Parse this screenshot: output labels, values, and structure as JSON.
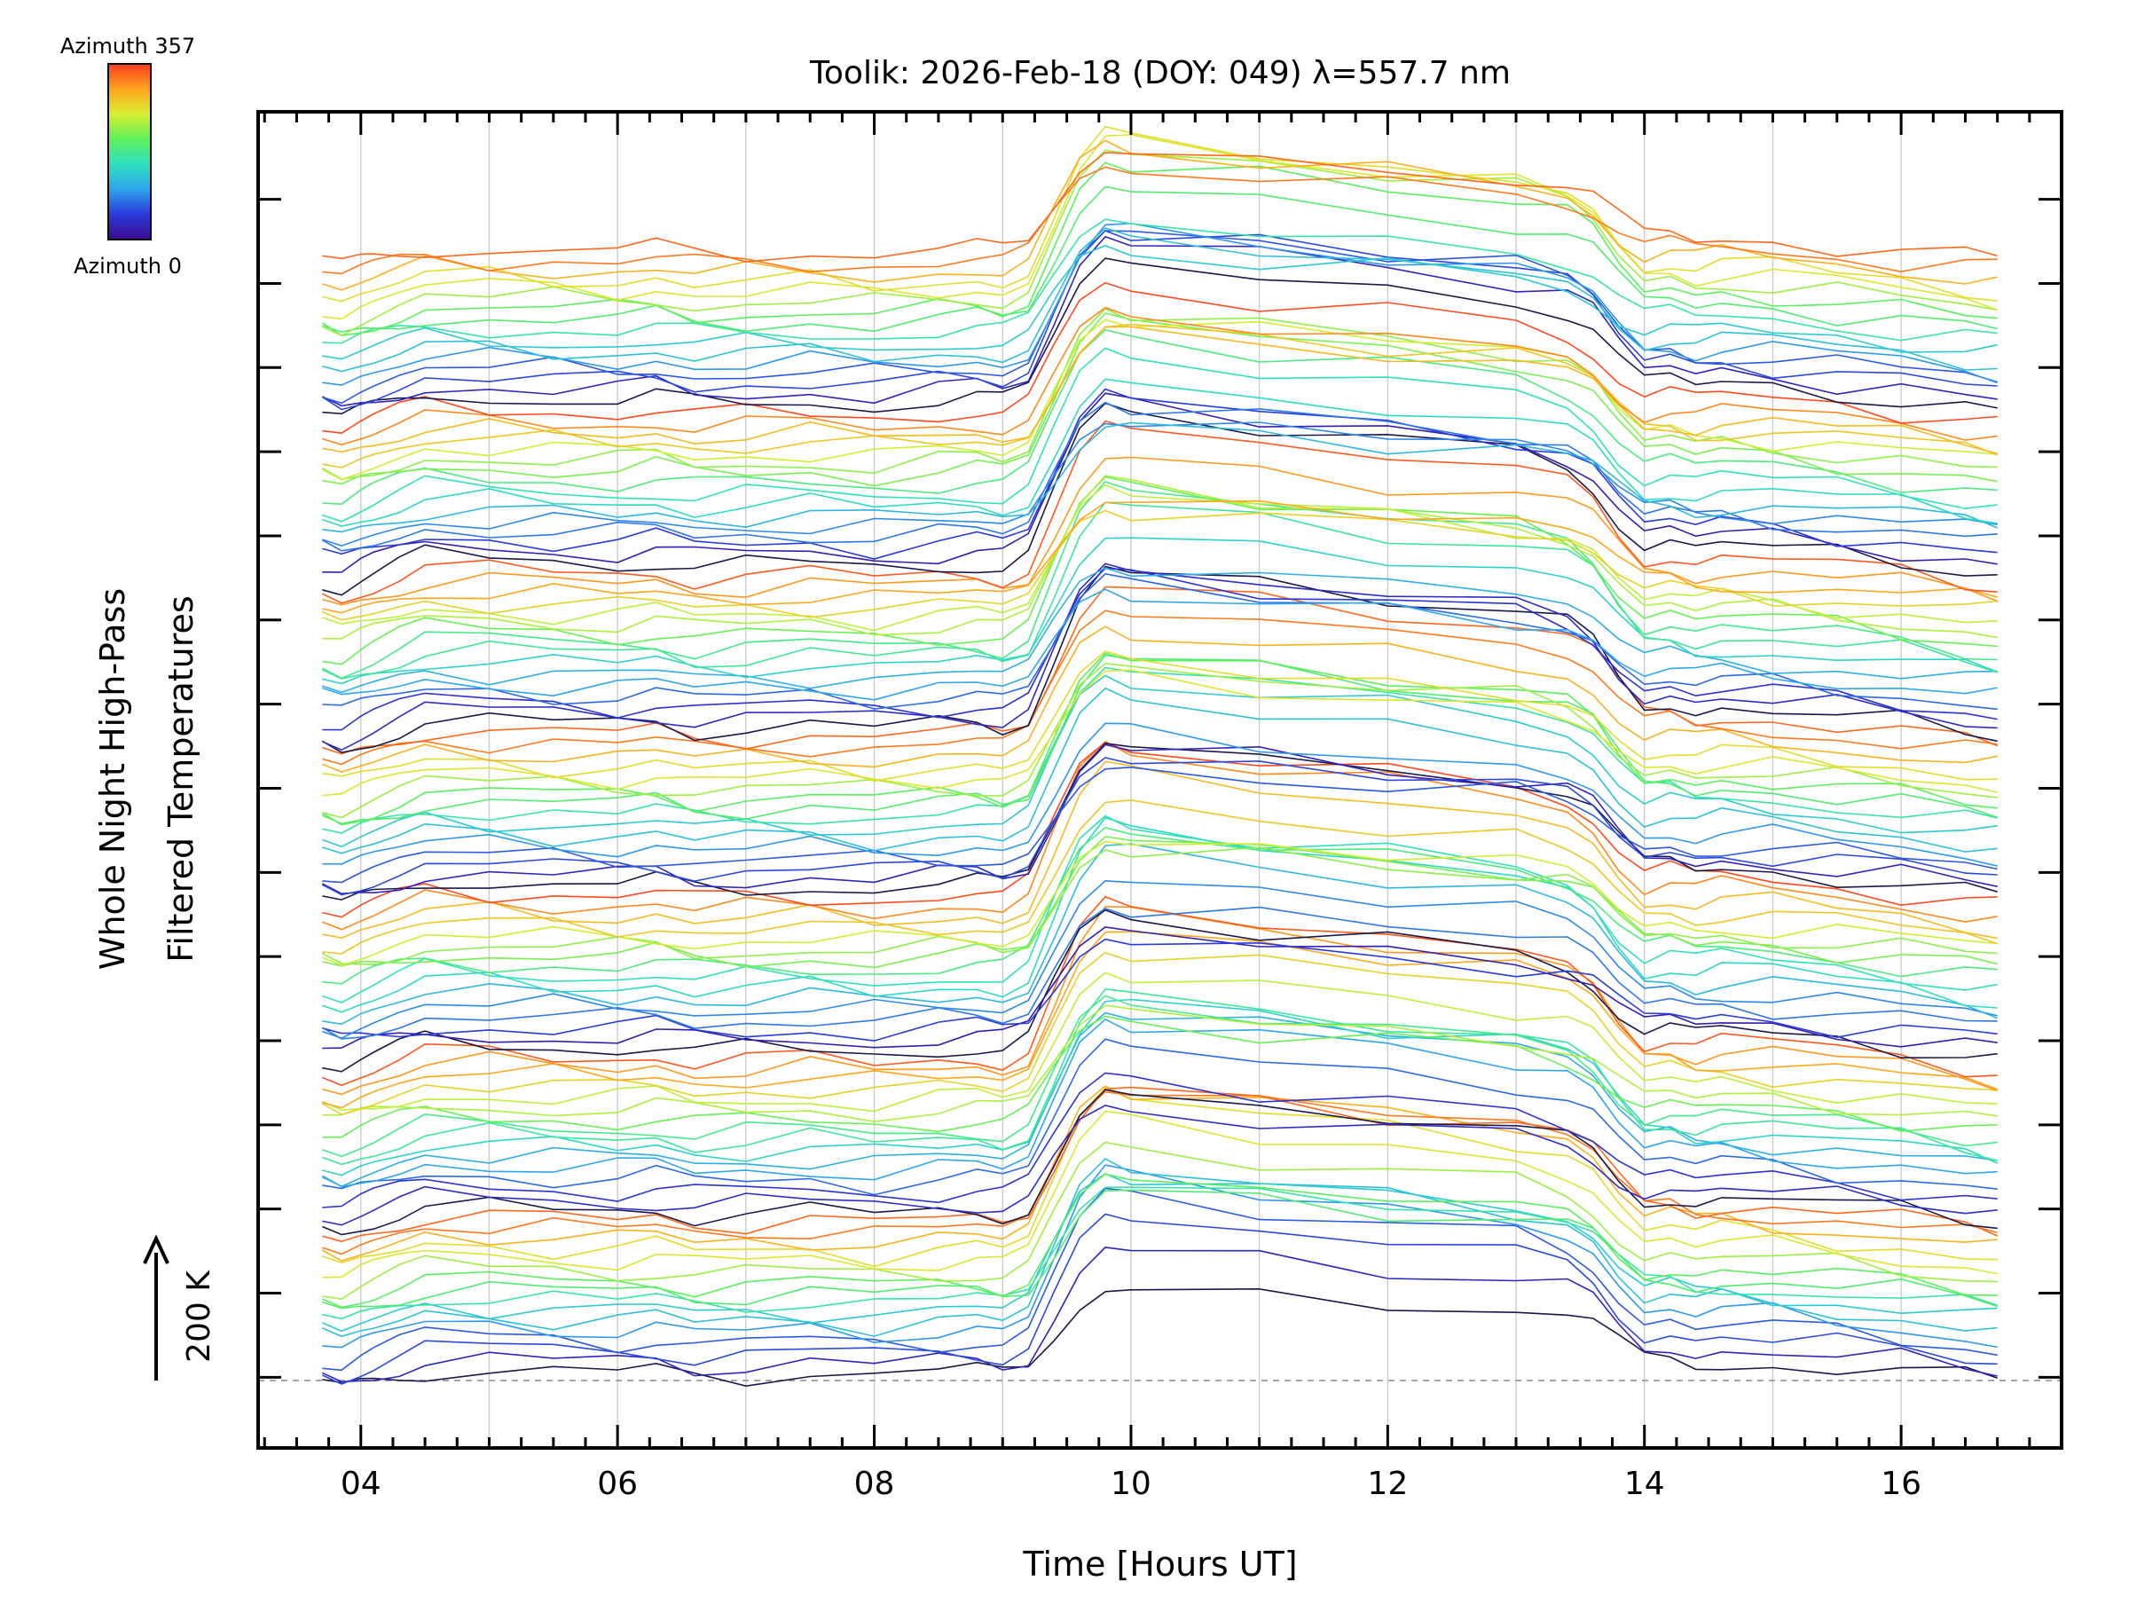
{
  "colorbar": {
    "top_label": "Azimuth 357",
    "bottom_label": "Azimuth 0",
    "stops": [
      "#3b0a8f",
      "#2a39d9",
      "#2fa4ee",
      "#2fe0c0",
      "#5ff05a",
      "#d8ee32",
      "#ffa51e",
      "#ff3a1f"
    ]
  },
  "scale_marker": {
    "label": "200 K"
  },
  "colors": {
    "axis": "#000000",
    "grid": "#cfcfcf",
    "baseline": "#a6a6a6"
  },
  "chart_data": {
    "type": "line",
    "title": "Toolik: 2026-Feb-18 (DOY: 049) λ=557.7 nm",
    "xlabel": "Time [Hours UT]",
    "ylabel": [
      "Whole Night High-Pass",
      "Filtered Temperatures"
    ],
    "xlim": [
      3.2,
      17.25
    ],
    "ylim": [
      -0.42,
      7.52
    ],
    "x_ticks": [
      4,
      6,
      8,
      10,
      12,
      14,
      16
    ],
    "x_tick_labels": [
      "04",
      "06",
      "08",
      "10",
      "12",
      "14",
      "16"
    ],
    "y_major_ticks": [
      0,
      0.5,
      1,
      1.5,
      2,
      2.5,
      3,
      3.5,
      4,
      4.5,
      5,
      5.5,
      6,
      6.5,
      7
    ],
    "grid": true,
    "series_count": 112,
    "series_offset_step": 0.06,
    "series_color_by": "azimuth",
    "azimuth_range": [
      0,
      357
    ],
    "base_profile": {
      "x": [
        3.7,
        3.85,
        4.0,
        4.1,
        4.3,
        4.5,
        5.0,
        5.5,
        6.0,
        6.3,
        6.6,
        7.0,
        7.5,
        8.0,
        8.5,
        8.8,
        9.0,
        9.2,
        9.4,
        9.6,
        9.8,
        10.0,
        11.0,
        12.0,
        13.0,
        13.4,
        13.6,
        13.8,
        14.0,
        14.2,
        14.4,
        14.6,
        15.0,
        15.5,
        16.0,
        16.5,
        16.75
      ],
      "y": [
        -0.05,
        -0.08,
        -0.04,
        -0.02,
        0.02,
        0.06,
        0.05,
        0.04,
        0.03,
        0.05,
        0.01,
        0.02,
        0.03,
        0.01,
        0.03,
        0.04,
        0.02,
        0.08,
        0.35,
        0.62,
        0.75,
        0.72,
        0.66,
        0.6,
        0.54,
        0.48,
        0.4,
        0.24,
        0.12,
        0.14,
        0.1,
        0.12,
        0.1,
        0.07,
        0.04,
        0.0,
        -0.02
      ]
    }
  }
}
